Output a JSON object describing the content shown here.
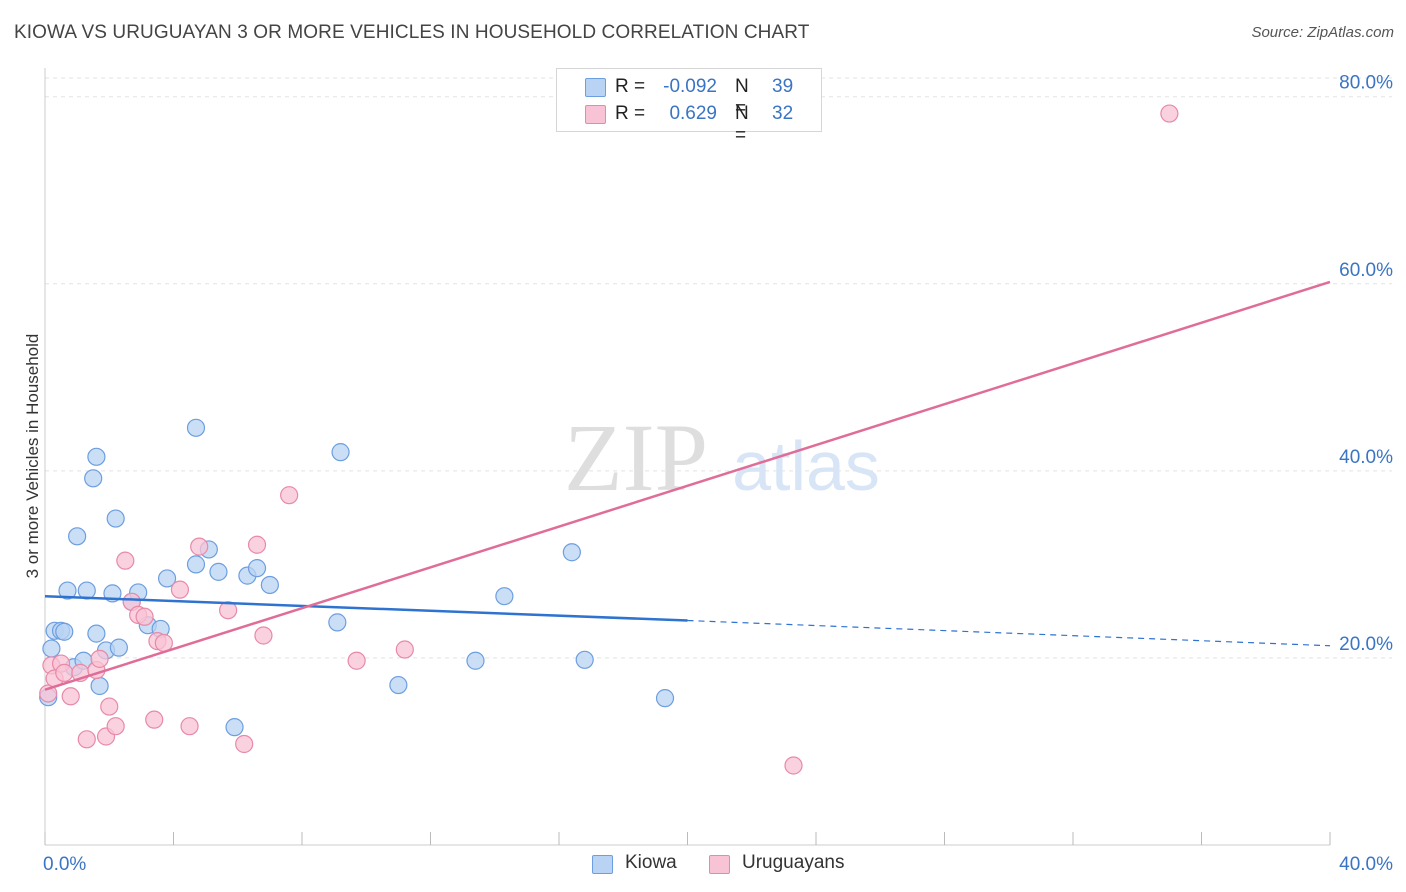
{
  "title": "KIOWA VS URUGUAYAN 3 OR MORE VEHICLES IN HOUSEHOLD CORRELATION CHART",
  "source": "Source: ZipAtlas.com",
  "watermark": {
    "zip": "ZIP",
    "atlas": "atlas"
  },
  "legend": {
    "rows": [
      {
        "r_label": "R =",
        "r_value": "-0.092",
        "n_label": "N =",
        "n_value": "39",
        "color": "#b8d3f3",
        "border": "#6d9ee0"
      },
      {
        "r_label": "R =",
        "r_value": "0.629",
        "n_label": "N =",
        "n_value": "32",
        "color": "#f8c3d4",
        "border": "#e889a8"
      }
    ]
  },
  "bottom_legend": [
    {
      "label": "Kiowa",
      "color": "#b8d3f3",
      "border": "#6d9ee0"
    },
    {
      "label": "Uruguayans",
      "color": "#f8c3d4",
      "border": "#e889a8"
    }
  ],
  "chart_data": {
    "type": "scatter",
    "title": "KIOWA VS URUGUAYAN 3 OR MORE VEHICLES IN HOUSEHOLD CORRELATION CHART",
    "xlabel": "",
    "ylabel": "3 or more Vehicles in Household",
    "xlim": [
      0,
      40
    ],
    "ylim": [
      0,
      82
    ],
    "x_tick_labels": [
      {
        "value": 0,
        "label": "0.0%"
      },
      {
        "value": 40,
        "label": "40.0%"
      }
    ],
    "x_minor_ticks": [
      0,
      4,
      8,
      12,
      16,
      20,
      24,
      28,
      32,
      36,
      40
    ],
    "y_tick_labels": [
      {
        "value": 20,
        "label": "20.0%"
      },
      {
        "value": 40,
        "label": "40.0%"
      },
      {
        "value": 60,
        "label": "60.0%"
      },
      {
        "value": 80,
        "label": "80.0%"
      }
    ],
    "grid": true,
    "legend_position": "top-center",
    "series": [
      {
        "name": "Kiowa",
        "color": "#6d9ee0",
        "fill": "#b8d3f3",
        "trend": {
          "x_start": 0,
          "y_start": 26.6,
          "x_solid_end": 20,
          "y_solid_end": 24.0,
          "x_end": 40,
          "y_end": 21.3,
          "color": "#2f73d0"
        },
        "points": [
          [
            0.1,
            15.8
          ],
          [
            0.2,
            21.0
          ],
          [
            0.3,
            22.9
          ],
          [
            0.5,
            22.9
          ],
          [
            0.6,
            22.8
          ],
          [
            0.7,
            27.2
          ],
          [
            0.9,
            19.0
          ],
          [
            1.0,
            33.0
          ],
          [
            1.2,
            19.7
          ],
          [
            1.3,
            27.2
          ],
          [
            1.5,
            39.2
          ],
          [
            1.6,
            41.5
          ],
          [
            1.6,
            22.6
          ],
          [
            1.7,
            17.0
          ],
          [
            1.9,
            20.8
          ],
          [
            2.1,
            26.9
          ],
          [
            2.2,
            34.9
          ],
          [
            2.3,
            21.1
          ],
          [
            2.7,
            26.0
          ],
          [
            2.9,
            27.0
          ],
          [
            3.2,
            23.5
          ],
          [
            3.6,
            23.1
          ],
          [
            3.8,
            28.5
          ],
          [
            4.7,
            30.0
          ],
          [
            4.7,
            44.6
          ],
          [
            5.1,
            31.6
          ],
          [
            5.4,
            29.2
          ],
          [
            5.9,
            12.6
          ],
          [
            6.3,
            28.8
          ],
          [
            6.6,
            29.6
          ],
          [
            7.0,
            27.8
          ],
          [
            9.1,
            23.8
          ],
          [
            9.2,
            42.0
          ],
          [
            11.0,
            17.1
          ],
          [
            13.4,
            19.7
          ],
          [
            14.3,
            26.6
          ],
          [
            16.4,
            31.3
          ],
          [
            16.8,
            19.8
          ],
          [
            19.3,
            15.7
          ]
        ]
      },
      {
        "name": "Uruguayans",
        "color": "#e889a8",
        "fill": "#f8c3d4",
        "trend": {
          "x_start": 0,
          "y_start": 16.6,
          "x_end": 40,
          "y_end": 60.2,
          "color": "#e06d98"
        },
        "points": [
          [
            0.1,
            16.2
          ],
          [
            0.2,
            19.2
          ],
          [
            0.3,
            17.8
          ],
          [
            0.5,
            19.4
          ],
          [
            0.6,
            18.4
          ],
          [
            0.8,
            15.9
          ],
          [
            1.1,
            18.4
          ],
          [
            1.3,
            11.3
          ],
          [
            1.6,
            18.7
          ],
          [
            1.7,
            19.9
          ],
          [
            1.9,
            11.6
          ],
          [
            2.0,
            14.8
          ],
          [
            2.2,
            12.7
          ],
          [
            2.5,
            30.4
          ],
          [
            2.7,
            26.0
          ],
          [
            2.9,
            24.6
          ],
          [
            3.1,
            24.4
          ],
          [
            3.4,
            13.4
          ],
          [
            3.5,
            21.8
          ],
          [
            3.7,
            21.6
          ],
          [
            4.2,
            27.3
          ],
          [
            4.5,
            12.7
          ],
          [
            4.8,
            31.9
          ],
          [
            5.7,
            25.1
          ],
          [
            6.2,
            10.8
          ],
          [
            6.6,
            32.1
          ],
          [
            6.8,
            22.4
          ],
          [
            7.6,
            37.4
          ],
          [
            9.7,
            19.7
          ],
          [
            11.2,
            20.9
          ],
          [
            23.3,
            8.5
          ],
          [
            35.0,
            78.2
          ]
        ]
      }
    ]
  }
}
